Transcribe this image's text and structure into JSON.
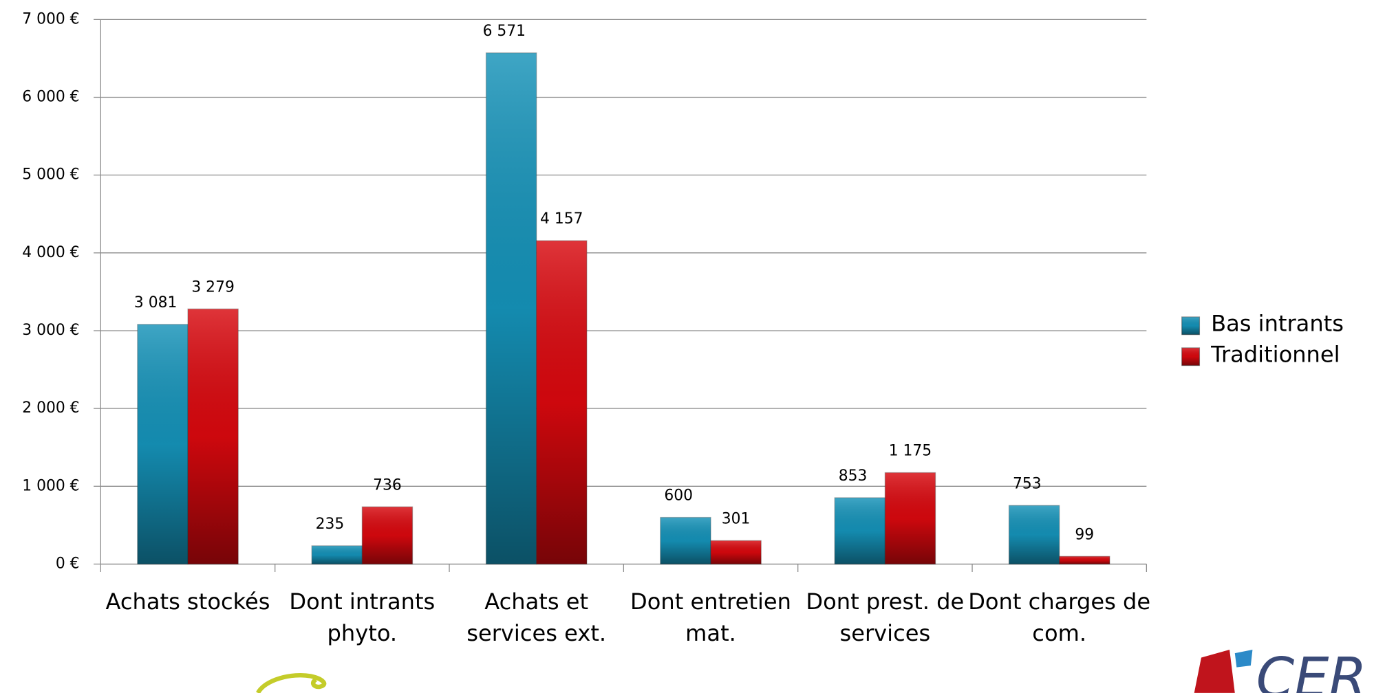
{
  "chart_data": {
    "type": "bar",
    "categories": [
      "Achats stockés",
      "Dont intrants phyto.",
      "Achats et services ext.",
      "Dont entretien mat.",
      "Dont prest. de services",
      "Dont charges de com."
    ],
    "series": [
      {
        "name": "Bas intrants",
        "color": "#1592b8",
        "values": [
          3081,
          235,
          6571,
          600,
          853,
          753
        ],
        "value_labels": [
          "3 081",
          "235",
          "6 571",
          "600",
          "853",
          "753"
        ]
      },
      {
        "name": "Traditionnel",
        "color": "#d8080e",
        "values": [
          3279,
          736,
          4157,
          301,
          1175,
          99
        ],
        "value_labels": [
          "3 279",
          "736",
          "4 157",
          "301",
          "1 175",
          "99"
        ]
      }
    ],
    "ylim": [
      0,
      7000
    ],
    "yticks": [
      {
        "value": 0,
        "label": "0 €"
      },
      {
        "value": 1000,
        "label": "1 000 €"
      },
      {
        "value": 2000,
        "label": "2 000 €"
      },
      {
        "value": 3000,
        "label": "3 000 €"
      },
      {
        "value": 4000,
        "label": "4 000 €"
      },
      {
        "value": 5000,
        "label": "5 000 €"
      },
      {
        "value": 6000,
        "label": "6 000 €"
      },
      {
        "value": 7000,
        "label": "7 000 €"
      }
    ],
    "grid": true,
    "legend": "right"
  },
  "logo": {
    "text": "CER"
  }
}
